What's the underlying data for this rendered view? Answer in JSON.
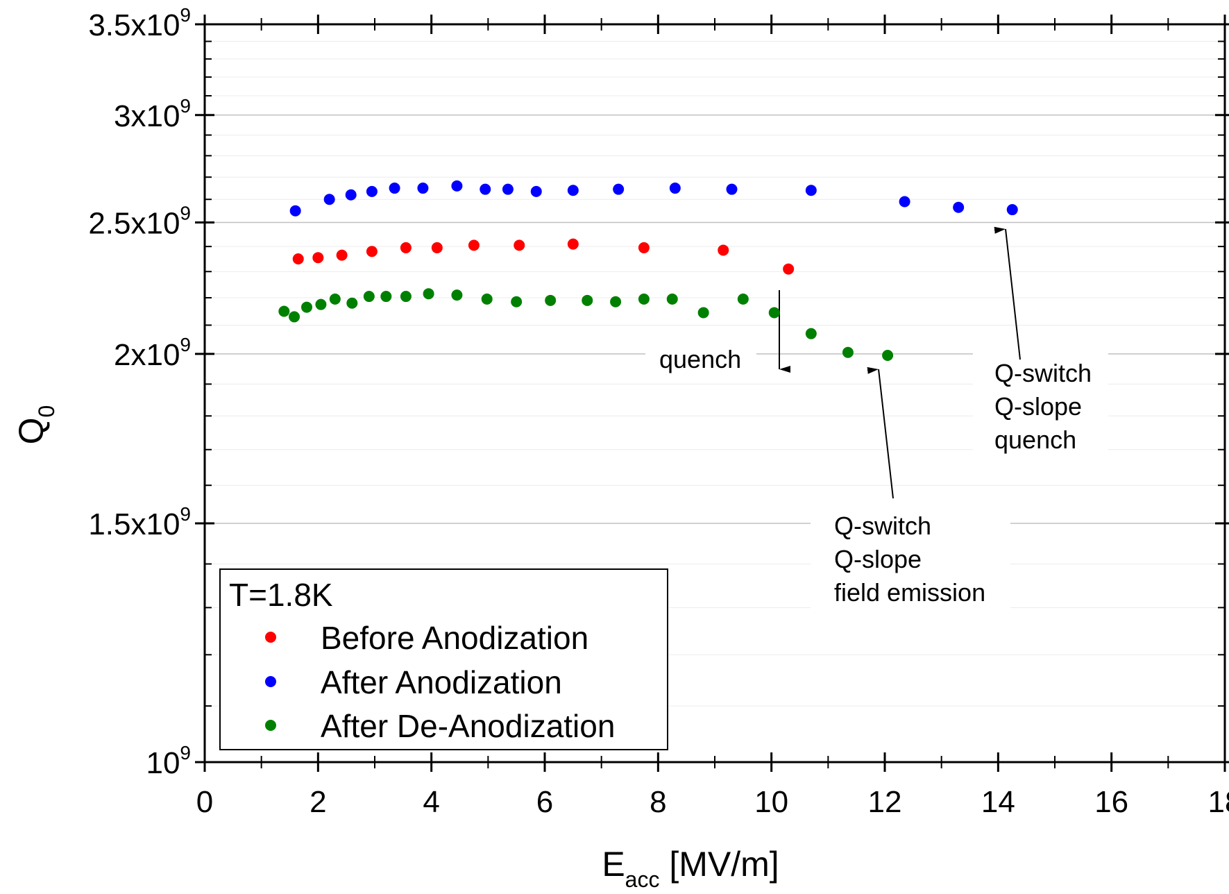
{
  "chart_data": {
    "type": "scatter",
    "xlabel": {
      "main": "E",
      "sub": "acc",
      "rest": " [MV/m]"
    },
    "ylabel": {
      "main": "Q",
      "sub": "0"
    },
    "xlim": [
      0,
      18
    ],
    "ylim": [
      1000000000,
      3500000000
    ],
    "yscale": "log",
    "grid": true,
    "x_ticks": [
      {
        "value": 0,
        "label": "0"
      },
      {
        "value": 2,
        "label": "2"
      },
      {
        "value": 4,
        "label": "4"
      },
      {
        "value": 6,
        "label": "6"
      },
      {
        "value": 8,
        "label": "8"
      },
      {
        "value": 10,
        "label": "10"
      },
      {
        "value": 12,
        "label": "12"
      },
      {
        "value": 14,
        "label": "14"
      },
      {
        "value": 16,
        "label": "16"
      },
      {
        "value": 18,
        "label": "18"
      }
    ],
    "y_ticks": [
      {
        "value": 1000000000,
        "mant": "10",
        "exp": "9"
      },
      {
        "value": 1500000000,
        "mant": "1.5x10",
        "exp": "9"
      },
      {
        "value": 2000000000,
        "mant": "2x10",
        "exp": "9"
      },
      {
        "value": 2500000000,
        "mant": "2.5x10",
        "exp": "9"
      },
      {
        "value": 3000000000,
        "mant": "3x10",
        "exp": "9"
      },
      {
        "value": 3500000000,
        "mant": "3.5x10",
        "exp": "9"
      }
    ],
    "legend": {
      "title": "T=1.8K",
      "placement": "bottom-left"
    },
    "series": [
      {
        "name": "Before Anodization",
        "color": "#ff0000",
        "x": [
          1.65,
          2.0,
          2.42,
          2.95,
          3.55,
          4.1,
          4.75,
          5.55,
          6.5,
          7.75,
          9.15,
          10.3
        ],
        "y": [
          2350000000,
          2355000000,
          2365000000,
          2380000000,
          2395000000,
          2395000000,
          2405000000,
          2405000000,
          2410000000,
          2395000000,
          2385000000,
          2310000000
        ]
      },
      {
        "name": "After Anodization",
        "color": "#0000ff",
        "x": [
          1.6,
          2.2,
          2.58,
          2.95,
          3.35,
          3.85,
          4.45,
          4.95,
          5.35,
          5.85,
          6.5,
          7.3,
          8.3,
          9.3,
          10.7,
          12.35,
          13.3,
          14.25
        ],
        "y": [
          2550000000,
          2600000000,
          2620000000,
          2635000000,
          2650000000,
          2650000000,
          2660000000,
          2645000000,
          2645000000,
          2635000000,
          2640000000,
          2645000000,
          2650000000,
          2645000000,
          2640000000,
          2590000000,
          2565000000,
          2555000000
        ]
      },
      {
        "name": "After De-Anodization",
        "color": "#008000",
        "x": [
          1.4,
          1.58,
          1.8,
          2.05,
          2.3,
          2.6,
          2.9,
          3.2,
          3.55,
          3.95,
          4.45,
          4.98,
          5.5,
          6.1,
          6.75,
          7.25,
          7.75,
          8.25,
          8.8,
          9.5,
          10.05,
          10.7,
          11.35,
          12.05
        ],
        "y": [
          2150000000,
          2130000000,
          2165000000,
          2175000000,
          2195000000,
          2180000000,
          2205000000,
          2205000000,
          2205000000,
          2215000000,
          2210000000,
          2195000000,
          2185000000,
          2190000000,
          2190000000,
          2185000000,
          2195000000,
          2195000000,
          2145000000,
          2195000000,
          2145000000,
          2070000000,
          2005000000,
          1995000000
        ]
      }
    ],
    "annotations": [
      {
        "id": "quench",
        "lines": [
          "quench"
        ]
      },
      {
        "id": "fe",
        "lines": [
          "Q-switch",
          "Q-slope",
          "field emission"
        ]
      },
      {
        "id": "qsq",
        "lines": [
          "Q-switch",
          "Q-slope",
          "quench"
        ]
      }
    ]
  }
}
